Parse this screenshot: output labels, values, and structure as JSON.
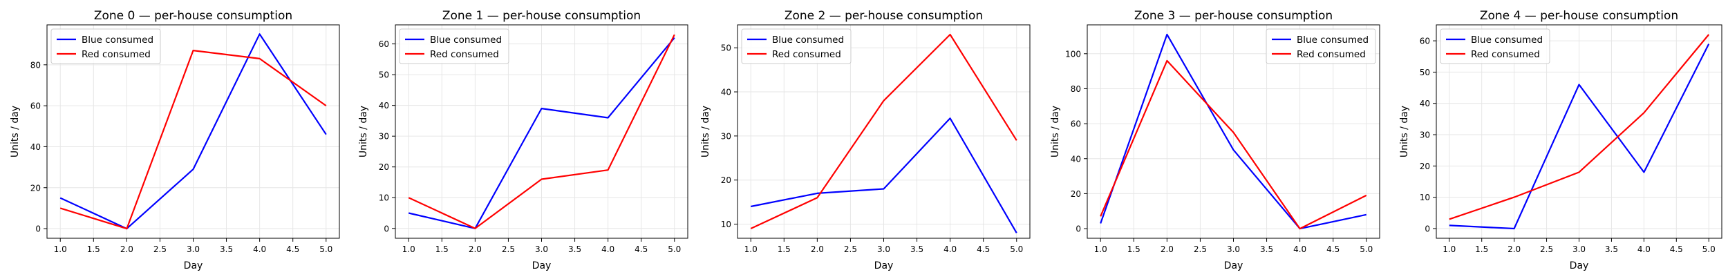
{
  "chart_data": [
    {
      "type": "line",
      "title": "Zone 0 — per-house consumption",
      "xlabel": "Day",
      "ylabel": "Units / day",
      "xlim": [
        0.8,
        5.2
      ],
      "ylim": [
        -4.7,
        99.5
      ],
      "xticks": [
        1.0,
        1.5,
        2.0,
        2.5,
        3.0,
        3.5,
        4.0,
        4.5,
        5.0
      ],
      "xtick_labels": [
        "1.0",
        "1.5",
        "2.0",
        "2.5",
        "3.0",
        "3.5",
        "4.0",
        "4.5",
        "5.0"
      ],
      "yticks": [
        0,
        20,
        40,
        60,
        80
      ],
      "ytick_labels": [
        "0",
        "20",
        "40",
        "60",
        "80"
      ],
      "grid": true,
      "legend": "top-left",
      "x": [
        1,
        2,
        3,
        4,
        5
      ],
      "series": [
        {
          "name": "Blue consumed",
          "color": "#0000ff",
          "values": [
            15,
            0,
            29,
            95,
            46
          ]
        },
        {
          "name": "Red consumed",
          "color": "#ff0000",
          "values": [
            10,
            0,
            87,
            83,
            60
          ]
        }
      ]
    },
    {
      "type": "line",
      "title": "Zone 1 — per-house consumption",
      "xlabel": "Day",
      "ylabel": "Units / day",
      "xlim": [
        0.8,
        5.2
      ],
      "ylim": [
        -3.2,
        66.2
      ],
      "xticks": [
        1.0,
        1.5,
        2.0,
        2.5,
        3.0,
        3.5,
        4.0,
        4.5,
        5.0
      ],
      "xtick_labels": [
        "1.0",
        "1.5",
        "2.0",
        "2.5",
        "3.0",
        "3.5",
        "4.0",
        "4.5",
        "5.0"
      ],
      "yticks": [
        0,
        10,
        20,
        30,
        40,
        50,
        60
      ],
      "ytick_labels": [
        "0",
        "10",
        "20",
        "30",
        "40",
        "50",
        "60"
      ],
      "grid": true,
      "legend": "top-left",
      "x": [
        1,
        2,
        3,
        4,
        5
      ],
      "series": [
        {
          "name": "Blue consumed",
          "color": "#0000ff",
          "values": [
            5,
            0,
            39,
            36,
            62
          ]
        },
        {
          "name": "Red consumed",
          "color": "#ff0000",
          "values": [
            10,
            0,
            16,
            19,
            63
          ]
        }
      ]
    },
    {
      "type": "line",
      "title": "Zone 2 — per-house consumption",
      "xlabel": "Day",
      "ylabel": "Units / day",
      "xlim": [
        0.8,
        5.2
      ],
      "ylim": [
        6.8,
        55.2
      ],
      "xticks": [
        1.0,
        1.5,
        2.0,
        2.5,
        3.0,
        3.5,
        4.0,
        4.5,
        5.0
      ],
      "xtick_labels": [
        "1.0",
        "1.5",
        "2.0",
        "2.5",
        "3.0",
        "3.5",
        "4.0",
        "4.5",
        "5.0"
      ],
      "yticks": [
        10,
        20,
        30,
        40,
        50
      ],
      "ytick_labels": [
        "10",
        "20",
        "30",
        "40",
        "50"
      ],
      "grid": true,
      "legend": "top-left",
      "x": [
        1,
        2,
        3,
        4,
        5
      ],
      "series": [
        {
          "name": "Blue consumed",
          "color": "#0000ff",
          "values": [
            14,
            17,
            18,
            34,
            8
          ]
        },
        {
          "name": "Red consumed",
          "color": "#ff0000",
          "values": [
            9,
            16,
            38,
            53,
            29
          ]
        }
      ]
    },
    {
      "type": "line",
      "title": "Zone 3 — per-house consumption",
      "xlabel": "Day",
      "ylabel": "Units / day",
      "xlim": [
        0.8,
        5.2
      ],
      "ylim": [
        -5.5,
        116.5
      ],
      "xticks": [
        1.0,
        1.5,
        2.0,
        2.5,
        3.0,
        3.5,
        4.0,
        4.5,
        5.0
      ],
      "xtick_labels": [
        "1.0",
        "1.5",
        "2.0",
        "2.5",
        "3.0",
        "3.5",
        "4.0",
        "4.5",
        "5.0"
      ],
      "yticks": [
        0,
        20,
        40,
        60,
        80,
        100
      ],
      "ytick_labels": [
        "0",
        "20",
        "40",
        "60",
        "80",
        "100"
      ],
      "grid": true,
      "legend": "top-right",
      "x": [
        1,
        2,
        3,
        4,
        5
      ],
      "series": [
        {
          "name": "Blue consumed",
          "color": "#0000ff",
          "values": [
            3,
            111,
            45,
            0,
            8
          ]
        },
        {
          "name": "Red consumed",
          "color": "#ff0000",
          "values": [
            7,
            96,
            55,
            0,
            19
          ]
        }
      ]
    },
    {
      "type": "line",
      "title": "Zone 4 — per-house consumption",
      "xlabel": "Day",
      "ylabel": "Units / day",
      "xlim": [
        0.8,
        5.2
      ],
      "ylim": [
        -3.1,
        65.1
      ],
      "xticks": [
        1.0,
        1.5,
        2.0,
        2.5,
        3.0,
        3.5,
        4.0,
        4.5,
        5.0
      ],
      "xtick_labels": [
        "1.0",
        "1.5",
        "2.0",
        "2.5",
        "3.0",
        "3.5",
        "4.0",
        "4.5",
        "5.0"
      ],
      "yticks": [
        0,
        10,
        20,
        30,
        40,
        50,
        60
      ],
      "ytick_labels": [
        "0",
        "10",
        "20",
        "30",
        "40",
        "50",
        "60"
      ],
      "grid": true,
      "legend": "top-left",
      "x": [
        1,
        2,
        3,
        4,
        5
      ],
      "series": [
        {
          "name": "Blue consumed",
          "color": "#0000ff",
          "values": [
            1,
            0,
            46,
            18,
            59
          ]
        },
        {
          "name": "Red consumed",
          "color": "#ff0000",
          "values": [
            3,
            10,
            18,
            37,
            62
          ]
        }
      ]
    }
  ]
}
